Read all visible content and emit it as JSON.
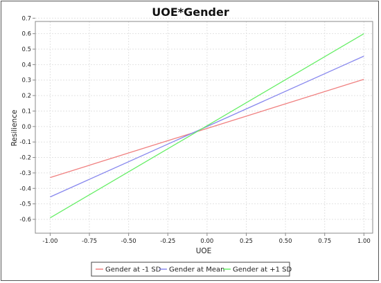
{
  "chart_data": {
    "type": "line",
    "title": "UOE*Gender",
    "xlabel": "UOE",
    "ylabel": "Resilience",
    "xlim": [
      -1.0,
      1.0
    ],
    "ylim": [
      -0.6,
      0.7
    ],
    "xticks": [
      -1.0,
      -0.75,
      -0.5,
      -0.25,
      0.0,
      0.25,
      0.5,
      0.75,
      1.0
    ],
    "xtick_labels": [
      "-1.00",
      "-0.75",
      "-0.50",
      "-0.25",
      "0.00",
      "0.25",
      "0.50",
      "0.75",
      "1.00"
    ],
    "yticks": [
      -0.6,
      -0.5,
      -0.4,
      -0.3,
      -0.2,
      -0.1,
      0.0,
      0.1,
      0.2,
      0.3,
      0.4,
      0.5,
      0.6,
      0.7
    ],
    "ytick_labels": [
      "-0.6",
      "-0.5",
      "-0.4",
      "-0.3",
      "-0.2",
      "-0.1",
      "0.0",
      "0.1",
      "0.2",
      "0.3",
      "0.4",
      "0.5",
      "0.6",
      "0.7"
    ],
    "grid": true,
    "legend_position": "bottom",
    "series": [
      {
        "name": "Gender at -1 SD",
        "color": "#f08080",
        "x": [
          -1.0,
          1.0
        ],
        "y": [
          -0.33,
          0.305
        ]
      },
      {
        "name": "Gender at Mean",
        "color": "#8888ee",
        "x": [
          -1.0,
          1.0
        ],
        "y": [
          -0.455,
          0.455
        ]
      },
      {
        "name": "Gender at +1 SD",
        "color": "#66ee66",
        "x": [
          -1.0,
          1.0
        ],
        "y": [
          -0.59,
          0.6
        ]
      }
    ]
  }
}
